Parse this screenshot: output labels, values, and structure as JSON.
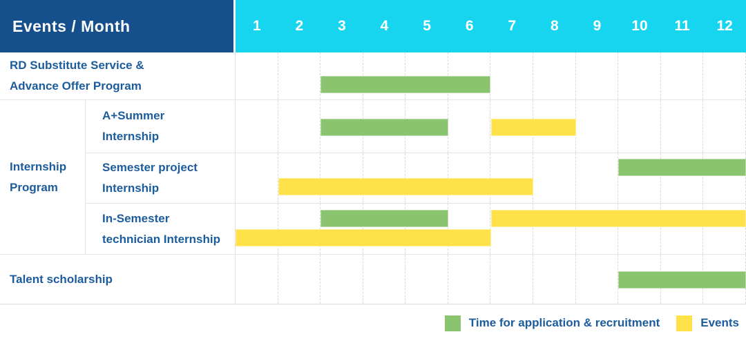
{
  "header": {
    "title": "Events / Month"
  },
  "colors": {
    "header_bg": "#15508C",
    "months_bg": "#17D5EE",
    "label_text": "#1C5C9C",
    "application_green": "#8BC46F",
    "events_yellow": "#FFE24A"
  },
  "legend": [
    {
      "key": "application",
      "label": "Time for application & recruitment",
      "color": "#8BC46F"
    },
    {
      "key": "events",
      "label": "Events",
      "color": "#FFE24A"
    }
  ],
  "chart_data": {
    "type": "gantt",
    "title": "Events / Month",
    "x_axis": {
      "unit": "month",
      "ticks": [
        "1",
        "2",
        "3",
        "4",
        "5",
        "6",
        "7",
        "8",
        "9",
        "10",
        "11",
        "12"
      ],
      "range": [
        1,
        12
      ]
    },
    "series": [
      {
        "key": "application",
        "name": "Time for application & recruitment",
        "color": "#8BC46F"
      },
      {
        "key": "events",
        "name": "Events",
        "color": "#FFE24A"
      }
    ],
    "rows": [
      {
        "group": "",
        "label": "RD Substitute Service &\nAdvance Offer Program",
        "bars": [
          {
            "series": "application",
            "start_month": 3,
            "end_month": 6,
            "position": "lower"
          }
        ]
      },
      {
        "group": "Internship\nProgram",
        "label": "A+Summer\nInternship",
        "bars": [
          {
            "series": "application",
            "start_month": 3,
            "end_month": 5,
            "position": "center"
          },
          {
            "series": "events",
            "start_month": 7,
            "end_month": 8,
            "position": "center"
          }
        ]
      },
      {
        "group": "Internship\nProgram",
        "label": "Semester project\nInternship",
        "bars": [
          {
            "series": "application",
            "start_month": 10,
            "end_month": 12,
            "position": "upper"
          },
          {
            "series": "events",
            "start_month": 2,
            "end_month": 7,
            "position": "lower"
          }
        ]
      },
      {
        "group": "Internship\nProgram",
        "label": "In-Semester\ntechnician Internship",
        "bars": [
          {
            "series": "application",
            "start_month": 3,
            "end_month": 5,
            "position": "upper"
          },
          {
            "series": "events",
            "start_month": 7,
            "end_month": 12,
            "position": "upper"
          },
          {
            "series": "events",
            "start_month": 1,
            "end_month": 6,
            "position": "lower"
          }
        ]
      },
      {
        "group": "",
        "label": "Talent scholarship",
        "bars": [
          {
            "series": "application",
            "start_month": 10,
            "end_month": 12,
            "position": "center"
          }
        ]
      }
    ]
  }
}
